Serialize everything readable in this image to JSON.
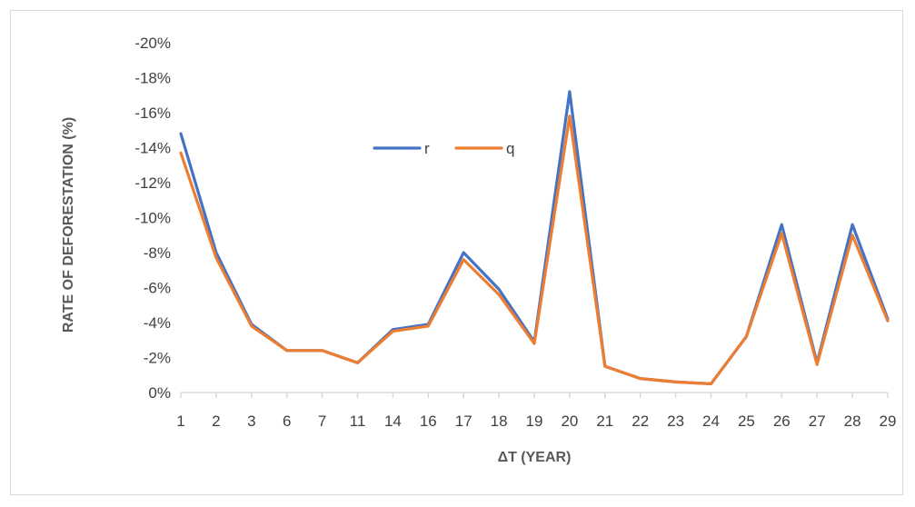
{
  "chart_data": {
    "type": "line",
    "xlabel": "ΔT (YEAR)",
    "ylabel": "RATE OF DEFORESTATION (%)",
    "categories": [
      "1",
      "2",
      "3",
      "6",
      "7",
      "11",
      "14",
      "16",
      "17",
      "18",
      "19",
      "20",
      "21",
      "22",
      "23",
      "24",
      "25",
      "26",
      "27",
      "28",
      "29"
    ],
    "ylim": [
      0,
      -20
    ],
    "y_ticks": [
      "0%",
      "-2%",
      "-4%",
      "-6%",
      "-8%",
      "-10%",
      "-12%",
      "-14%",
      "-16%",
      "-18%",
      "-20%"
    ],
    "y_tick_values": [
      0,
      -2,
      -4,
      -6,
      -8,
      -10,
      -12,
      -14,
      -16,
      -18,
      -20
    ],
    "grid": false,
    "legend_position": "center-left, inside plot",
    "series": [
      {
        "name": "r",
        "color": "#4472C4",
        "values": [
          -14.8,
          -8.0,
          -3.9,
          -2.4,
          -2.4,
          -1.7,
          -3.6,
          -3.9,
          -8.0,
          -5.9,
          -2.9,
          -17.2,
          -1.5,
          -0.8,
          -0.6,
          -0.5,
          -3.2,
          -9.6,
          -1.7,
          -9.6,
          -4.2
        ]
      },
      {
        "name": "q",
        "color": "#ED7D31",
        "values": [
          -13.7,
          -7.7,
          -3.8,
          -2.4,
          -2.4,
          -1.7,
          -3.5,
          -3.8,
          -7.6,
          -5.6,
          -2.8,
          -15.8,
          -1.5,
          -0.8,
          -0.6,
          -0.5,
          -3.2,
          -9.1,
          -1.6,
          -9.0,
          -4.1
        ]
      }
    ]
  }
}
